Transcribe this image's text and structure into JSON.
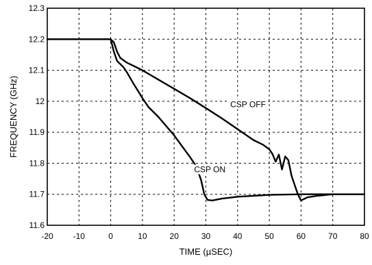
{
  "chart_data": {
    "type": "line",
    "xlabel": "TIME (µSEC)",
    "ylabel": "FREQUENCY (GHz)",
    "xlim": [
      -20,
      80
    ],
    "ylim": [
      11.6,
      12.3
    ],
    "xticks": [
      "-20",
      "-10",
      "0",
      "10",
      "20",
      "30",
      "40",
      "50",
      "60",
      "70",
      "80"
    ],
    "yticks": [
      "11.6",
      "11.7",
      "11.8",
      "11.9",
      "12",
      "12.1",
      "12.2",
      "12.3"
    ],
    "grid": true,
    "series": [
      {
        "name": "CSP OFF",
        "points": [
          [
            -20,
            12.2
          ],
          [
            0,
            12.2
          ],
          [
            1,
            12.19
          ],
          [
            2,
            12.16
          ],
          [
            3,
            12.14
          ],
          [
            5,
            12.125
          ],
          [
            8,
            12.11
          ],
          [
            10,
            12.1
          ],
          [
            15,
            12.07
          ],
          [
            20,
            12.04
          ],
          [
            25,
            12.01
          ],
          [
            30,
            11.978
          ],
          [
            35,
            11.945
          ],
          [
            40,
            11.91
          ],
          [
            45,
            11.875
          ],
          [
            48,
            11.86
          ],
          [
            50,
            11.845
          ],
          [
            51,
            11.83
          ],
          [
            52,
            11.805
          ],
          [
            53,
            11.828
          ],
          [
            54,
            11.78
          ],
          [
            55,
            11.822
          ],
          [
            56,
            11.81
          ],
          [
            57,
            11.76
          ],
          [
            58,
            11.73
          ],
          [
            59,
            11.7
          ],
          [
            60,
            11.68
          ],
          [
            61,
            11.685
          ],
          [
            62,
            11.69
          ],
          [
            65,
            11.695
          ],
          [
            70,
            11.7
          ],
          [
            80,
            11.7
          ]
        ]
      },
      {
        "name": "CSP ON",
        "points": [
          [
            -20,
            12.2
          ],
          [
            0,
            12.2
          ],
          [
            1,
            12.16
          ],
          [
            2,
            12.13
          ],
          [
            3,
            12.12
          ],
          [
            4,
            12.11
          ],
          [
            5,
            12.095
          ],
          [
            7,
            12.06
          ],
          [
            10,
            12.01
          ],
          [
            12,
            11.98
          ],
          [
            15,
            11.95
          ],
          [
            20,
            11.89
          ],
          [
            25,
            11.82
          ],
          [
            27,
            11.79
          ],
          [
            28.5,
            11.745
          ],
          [
            29.5,
            11.7
          ],
          [
            30.5,
            11.682
          ],
          [
            32,
            11.68
          ],
          [
            35,
            11.686
          ],
          [
            40,
            11.692
          ],
          [
            50,
            11.698
          ],
          [
            60,
            11.7
          ],
          [
            80,
            11.7
          ]
        ]
      }
    ],
    "annotations": [
      {
        "text": "CSP OFF",
        "x": 37.7,
        "y": 11.99
      },
      {
        "text": "CSP ON",
        "x": 26.3,
        "y": 11.78
      }
    ]
  }
}
